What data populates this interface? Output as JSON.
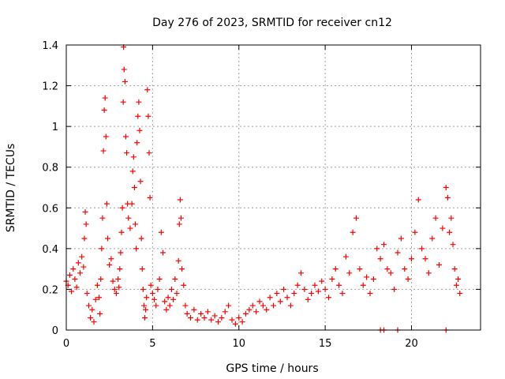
{
  "chart_data": {
    "type": "scatter",
    "title": "Day 276 of 2023, SRMTID for receiver cn12",
    "xlabel": "GPS time / hours",
    "ylabel": "SRMTID / TECUs",
    "xlim": [
      0,
      24
    ],
    "ylim": [
      0,
      1.4
    ],
    "xticks": [
      0,
      5,
      10,
      15,
      20
    ],
    "yticks": [
      0,
      0.2,
      0.4,
      0.6,
      0.8,
      1,
      1.2,
      1.4
    ],
    "xtick_labels": [
      "0",
      "5",
      "10",
      "15",
      "20"
    ],
    "ytick_labels": [
      "0",
      "0.2",
      "0.4",
      "0.6",
      "0.8",
      "1",
      "1.2",
      "1.4"
    ],
    "grid": true,
    "marker": "+",
    "color": "#ff0000",
    "series": [
      {
        "name": "SRMTID",
        "points": [
          [
            0.0,
            0.24
          ],
          [
            0.1,
            0.22
          ],
          [
            0.2,
            0.27
          ],
          [
            0.3,
            0.19
          ],
          [
            0.4,
            0.3
          ],
          [
            0.5,
            0.25
          ],
          [
            0.6,
            0.21
          ],
          [
            0.7,
            0.33
          ],
          [
            0.8,
            0.28
          ],
          [
            0.9,
            0.36
          ],
          [
            1.0,
            0.31
          ],
          [
            1.05,
            0.45
          ],
          [
            1.1,
            0.58
          ],
          [
            1.15,
            0.52
          ],
          [
            1.2,
            0.18
          ],
          [
            1.3,
            0.12
          ],
          [
            1.4,
            0.06
          ],
          [
            1.5,
            0.1
          ],
          [
            1.6,
            0.04
          ],
          [
            1.7,
            0.15
          ],
          [
            1.8,
            0.22
          ],
          [
            1.9,
            0.16
          ],
          [
            1.95,
            0.08
          ],
          [
            2.0,
            0.25
          ],
          [
            2.05,
            0.4
          ],
          [
            2.1,
            0.55
          ],
          [
            2.15,
            0.88
          ],
          [
            2.2,
            1.08
          ],
          [
            2.25,
            1.14
          ],
          [
            2.3,
            0.95
          ],
          [
            2.35,
            0.62
          ],
          [
            2.4,
            0.45
          ],
          [
            2.5,
            0.32
          ],
          [
            2.6,
            0.35
          ],
          [
            2.7,
            0.24
          ],
          [
            2.8,
            0.2
          ],
          [
            2.9,
            0.18
          ],
          [
            3.0,
            0.25
          ],
          [
            3.05,
            0.21
          ],
          [
            3.1,
            0.3
          ],
          [
            3.15,
            0.38
          ],
          [
            3.2,
            0.48
          ],
          [
            3.25,
            0.6
          ],
          [
            3.3,
            1.12
          ],
          [
            3.32,
            1.39
          ],
          [
            3.35,
            1.28
          ],
          [
            3.4,
            1.22
          ],
          [
            3.45,
            0.95
          ],
          [
            3.5,
            0.87
          ],
          [
            3.55,
            0.62
          ],
          [
            3.6,
            0.55
          ],
          [
            3.7,
            0.5
          ],
          [
            3.8,
            0.62
          ],
          [
            3.85,
            0.78
          ],
          [
            3.9,
            0.85
          ],
          [
            3.95,
            0.7
          ],
          [
            4.0,
            0.52
          ],
          [
            4.05,
            0.4
          ],
          [
            4.1,
            0.92
          ],
          [
            4.15,
            1.05
          ],
          [
            4.2,
            1.12
          ],
          [
            4.25,
            0.98
          ],
          [
            4.3,
            0.73
          ],
          [
            4.35,
            0.45
          ],
          [
            4.4,
            0.3
          ],
          [
            4.45,
            0.2
          ],
          [
            4.5,
            0.12
          ],
          [
            4.55,
            0.06
          ],
          [
            4.6,
            0.1
          ],
          [
            4.65,
            0.16
          ],
          [
            4.7,
            1.18
          ],
          [
            4.75,
            1.05
          ],
          [
            4.8,
            0.87
          ],
          [
            4.85,
            0.65
          ],
          [
            4.9,
            0.22
          ],
          [
            5.0,
            0.18
          ],
          [
            5.1,
            0.15
          ],
          [
            5.2,
            0.12
          ],
          [
            5.3,
            0.2
          ],
          [
            5.4,
            0.25
          ],
          [
            5.5,
            0.48
          ],
          [
            5.6,
            0.38
          ],
          [
            5.7,
            0.14
          ],
          [
            5.8,
            0.1
          ],
          [
            5.9,
            0.16
          ],
          [
            6.0,
            0.12
          ],
          [
            6.1,
            0.2
          ],
          [
            6.2,
            0.15
          ],
          [
            6.3,
            0.25
          ],
          [
            6.4,
            0.18
          ],
          [
            6.5,
            0.34
          ],
          [
            6.55,
            0.52
          ],
          [
            6.6,
            0.64
          ],
          [
            6.65,
            0.55
          ],
          [
            6.7,
            0.3
          ],
          [
            6.8,
            0.22
          ],
          [
            6.9,
            0.12
          ],
          [
            7.0,
            0.08
          ],
          [
            7.2,
            0.06
          ],
          [
            7.4,
            0.1
          ],
          [
            7.6,
            0.05
          ],
          [
            7.8,
            0.08
          ],
          [
            8.0,
            0.06
          ],
          [
            8.2,
            0.09
          ],
          [
            8.4,
            0.05
          ],
          [
            8.6,
            0.07
          ],
          [
            8.8,
            0.04
          ],
          [
            9.0,
            0.06
          ],
          [
            9.2,
            0.09
          ],
          [
            9.4,
            0.12
          ],
          [
            9.6,
            0.05
          ],
          [
            9.8,
            0.03
          ],
          [
            10.0,
            0.06
          ],
          [
            10.2,
            0.04
          ],
          [
            10.4,
            0.08
          ],
          [
            10.6,
            0.1
          ],
          [
            10.8,
            0.12
          ],
          [
            11.0,
            0.09
          ],
          [
            11.2,
            0.14
          ],
          [
            11.4,
            0.12
          ],
          [
            11.6,
            0.1
          ],
          [
            11.8,
            0.16
          ],
          [
            12.0,
            0.12
          ],
          [
            12.2,
            0.18
          ],
          [
            12.4,
            0.14
          ],
          [
            12.6,
            0.2
          ],
          [
            12.8,
            0.16
          ],
          [
            13.0,
            0.12
          ],
          [
            13.2,
            0.18
          ],
          [
            13.4,
            0.22
          ],
          [
            13.6,
            0.28
          ],
          [
            13.8,
            0.2
          ],
          [
            14.0,
            0.15
          ],
          [
            14.2,
            0.18
          ],
          [
            14.4,
            0.22
          ],
          [
            14.6,
            0.19
          ],
          [
            14.8,
            0.24
          ],
          [
            15.0,
            0.2
          ],
          [
            15.2,
            0.16
          ],
          [
            15.4,
            0.25
          ],
          [
            15.6,
            0.3
          ],
          [
            15.8,
            0.22
          ],
          [
            16.0,
            0.18
          ],
          [
            16.2,
            0.36
          ],
          [
            16.4,
            0.28
          ],
          [
            16.6,
            0.48
          ],
          [
            16.8,
            0.55
          ],
          [
            17.0,
            0.3
          ],
          [
            17.2,
            0.22
          ],
          [
            17.4,
            0.26
          ],
          [
            17.6,
            0.18
          ],
          [
            17.8,
            0.25
          ],
          [
            18.0,
            0.4
          ],
          [
            18.2,
            0.35
          ],
          [
            18.4,
            0.42
          ],
          [
            18.6,
            0.3
          ],
          [
            18.8,
            0.28
          ],
          [
            19.0,
            0.2
          ],
          [
            19.2,
            0.38
          ],
          [
            19.4,
            0.45
          ],
          [
            19.6,
            0.3
          ],
          [
            19.8,
            0.25
          ],
          [
            20.0,
            0.35
          ],
          [
            20.2,
            0.48
          ],
          [
            20.4,
            0.64
          ],
          [
            20.6,
            0.4
          ],
          [
            20.8,
            0.35
          ],
          [
            21.0,
            0.28
          ],
          [
            21.2,
            0.45
          ],
          [
            21.4,
            0.55
          ],
          [
            21.6,
            0.32
          ],
          [
            21.8,
            0.5
          ],
          [
            22.0,
            0.7
          ],
          [
            22.1,
            0.65
          ],
          [
            22.2,
            0.48
          ],
          [
            22.3,
            0.55
          ],
          [
            22.4,
            0.42
          ],
          [
            22.5,
            0.3
          ],
          [
            22.6,
            0.22
          ],
          [
            22.7,
            0.25
          ],
          [
            22.8,
            0.18
          ],
          [
            18.2,
            0.0
          ],
          [
            18.4,
            0.0
          ],
          [
            19.2,
            0.0
          ],
          [
            22.0,
            0.0
          ]
        ]
      }
    ]
  }
}
